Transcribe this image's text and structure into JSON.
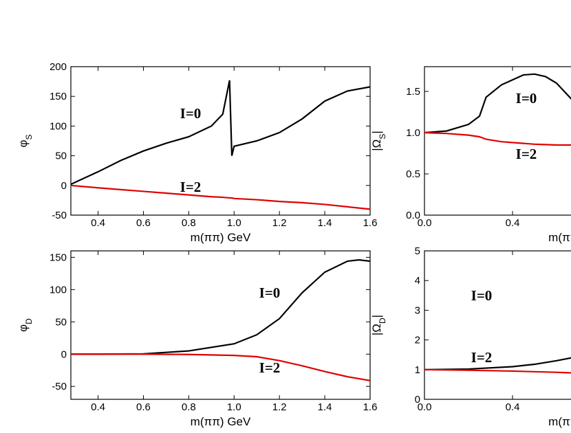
{
  "chart_data": [
    {
      "type": "line",
      "xlabel": "m(ππ) GeV",
      "ylabel": [
        "φ",
        "S"
      ],
      "x": [
        0.28,
        0.4,
        0.5,
        0.6,
        0.7,
        0.8,
        0.9,
        0.95,
        0.98,
        0.99,
        1.0,
        1.1,
        1.2,
        1.3,
        1.4,
        1.5,
        1.6
      ],
      "series": [
        {
          "name": "I=0",
          "color": "#000000",
          "values": [
            2,
            23,
            42,
            58,
            71,
            82,
            100,
            120,
            177,
            50,
            66,
            75,
            89,
            112,
            142,
            159,
            166
          ]
        },
        {
          "name": "I=2",
          "color": "#e00000",
          "values": [
            0,
            -4,
            -7,
            -10,
            -13,
            -16,
            -19,
            -20,
            -21,
            -21,
            -22,
            -24,
            -27,
            -29,
            -32,
            -36,
            -40
          ]
        }
      ],
      "xlim": [
        0.28,
        1.6
      ],
      "xticks": [
        0.4,
        0.6,
        0.8,
        {
          "value": 1.0,
          "label": "1.0"
        },
        1.2,
        1.4,
        1.6
      ],
      "ylim": [
        -50,
        200
      ],
      "yticks": [
        -50,
        0,
        50,
        100,
        150,
        200
      ]
    },
    {
      "type": "line",
      "xlabel": "m(ππ) GeV",
      "ylabel": [
        "|Ω",
        "S",
        "|"
      ],
      "x": [
        0,
        0.1,
        0.2,
        0.25,
        0.28,
        0.35,
        0.45,
        0.5,
        0.55,
        0.6,
        0.67
      ],
      "series": [
        {
          "name": "I=0",
          "color": "#000000",
          "values": [
            1.0,
            1.02,
            1.1,
            1.2,
            1.43,
            1.58,
            1.7,
            1.71,
            1.68,
            1.6,
            1.4
          ]
        },
        {
          "name": "I=2",
          "color": "#e00000",
          "values": [
            1.0,
            0.99,
            0.97,
            0.95,
            0.92,
            0.89,
            0.87,
            0.86,
            0.855,
            0.85,
            0.85
          ]
        }
      ],
      "xlim": [
        0,
        1.4
      ],
      "xticks": [
        {
          "value": 0,
          "label": "0.0"
        },
        0.4
      ],
      "ylim": [
        0,
        1.8
      ],
      "yticks": [
        {
          "value": 0,
          "label": "0.0"
        },
        0.5,
        {
          "value": 1,
          "label": "1.0"
        },
        1.5
      ]
    },
    {
      "type": "line",
      "xlabel": "m(ππ) GeV",
      "ylabel": [
        "φ",
        "D"
      ],
      "x": [
        0.28,
        0.4,
        0.6,
        0.8,
        1.0,
        1.1,
        1.2,
        1.3,
        1.4,
        1.5,
        1.55,
        1.6
      ],
      "series": [
        {
          "name": "I=0",
          "color": "#000000",
          "values": [
            0,
            0,
            0.5,
            5,
            16,
            30,
            55,
            95,
            127,
            144,
            146,
            144
          ]
        },
        {
          "name": "I=2",
          "color": "#e00000",
          "values": [
            0,
            0,
            0,
            -0.5,
            -2,
            -4,
            -10,
            -18,
            -27,
            -35,
            -38,
            -41
          ]
        }
      ],
      "xlim": [
        0.28,
        1.6
      ],
      "xticks": [
        0.4,
        0.6,
        0.8,
        {
          "value": 1.0,
          "label": "1.0"
        },
        1.2,
        1.4,
        1.6
      ],
      "ylim": [
        -70,
        160
      ],
      "yticks": [
        -50,
        0,
        50,
        100,
        150
      ]
    },
    {
      "type": "line",
      "xlabel": "m(ππ) GeV",
      "ylabel": [
        "|Ω",
        "D",
        "|"
      ],
      "x": [
        0,
        0.2,
        0.4,
        0.5,
        0.6,
        0.67
      ],
      "series": [
        {
          "name": "I=0",
          "color": "#000000",
          "values": [
            1,
            1.02,
            1.1,
            1.18,
            1.3,
            1.4
          ]
        },
        {
          "name": "I=2",
          "color": "#e00000",
          "values": [
            1,
            0.98,
            0.95,
            0.93,
            0.91,
            0.89
          ]
        }
      ],
      "xlim": [
        0,
        1.4
      ],
      "xticks": [
        {
          "value": 0,
          "label": "0.0"
        },
        0.4
      ],
      "ylim": [
        0,
        5
      ],
      "yticks": [
        0,
        1,
        2,
        3,
        4,
        5
      ]
    }
  ]
}
